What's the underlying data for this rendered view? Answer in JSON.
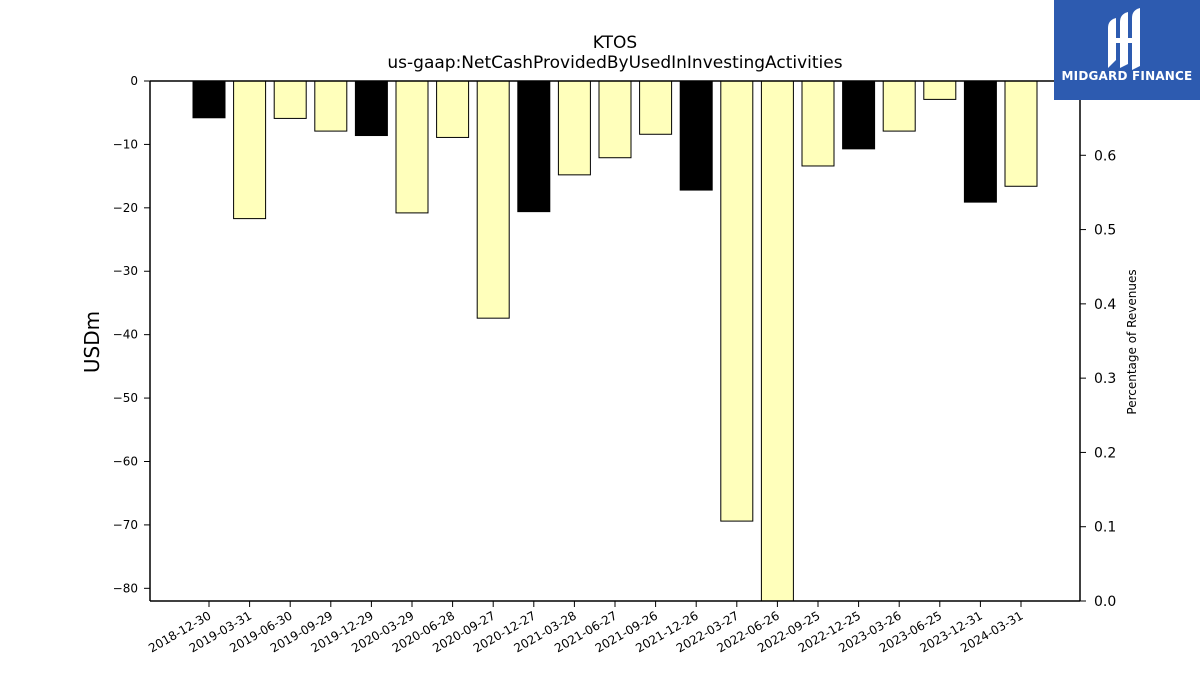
{
  "chart_data": {
    "type": "bar",
    "title": "KTOS",
    "subtitle": "us-gaap:NetCashProvidedByUsedInInvestingActivities",
    "ylabel": "USDm",
    "y2label": "Percentage of Revenues",
    "ylim": [
      -82,
      0
    ],
    "y2lim": [
      0.0,
      0.7
    ],
    "yticks": [
      0,
      -10,
      -20,
      -30,
      -40,
      -50,
      -60,
      -70,
      -80
    ],
    "y2ticks": [
      "0.0",
      "0.1",
      "0.2",
      "0.3",
      "0.4",
      "0.5",
      "0.6"
    ],
    "categories": [
      "2018-12-30",
      "2019-03-31",
      "2019-06-30",
      "2019-09-29",
      "2019-12-29",
      "2020-03-29",
      "2020-06-28",
      "2020-09-27",
      "2020-12-27",
      "2021-03-28",
      "2021-06-27",
      "2021-09-26",
      "2021-12-26",
      "2022-03-27",
      "2022-06-26",
      "2022-09-25",
      "2022-12-25",
      "2023-03-26",
      "2023-06-25",
      "2023-12-31",
      "2024-03-31"
    ],
    "values": [
      -5.8,
      -21.7,
      -5.9,
      -7.9,
      -8.6,
      -20.8,
      -8.9,
      -37.4,
      -20.6,
      -14.8,
      -12.1,
      -8.4,
      -17.2,
      -69.4,
      -82.0,
      -13.4,
      -10.7,
      -7.9,
      -2.9,
      -19.1,
      -16.6
    ],
    "bar_kind": [
      "annual",
      "quarter",
      "quarter",
      "quarter",
      "annual",
      "quarter",
      "quarter",
      "quarter",
      "annual",
      "quarter",
      "quarter",
      "quarter",
      "annual",
      "quarter",
      "quarter",
      "quarter",
      "annual",
      "quarter",
      "quarter",
      "annual",
      "quarter"
    ],
    "colors": {
      "annual": "#000000",
      "quarter": "#ffffbb",
      "edge": "#000000"
    },
    "grid": false,
    "legend": "none"
  },
  "logo": {
    "text": "MIDGARD FINANCE",
    "color": "#2d5bb0"
  }
}
